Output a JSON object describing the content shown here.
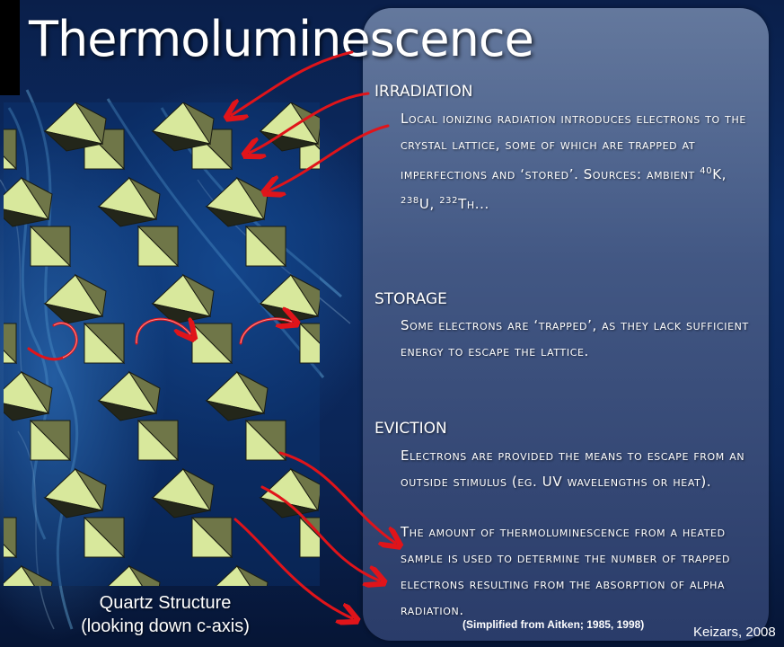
{
  "title": "Thermoluminescence",
  "figure": {
    "caption_line1": "Quartz Structure",
    "caption_line2": "(looking down c-axis)"
  },
  "sections": [
    {
      "heading": "IRRADIATION",
      "body_part1": "Local ionizing radiation introduces electrons to the crystal lattice, some of which are trapped at imperfections and ‘stored’.  Sources:  ambient ",
      "isotope1_mass": "40",
      "isotope1_symbol": "K, ",
      "isotope2_mass": "238",
      "isotope2_symbol": "U, ",
      "isotope3_mass": "232",
      "isotope3_symbol": "Th..."
    },
    {
      "heading": "STORAGE",
      "body": "Some electrons are ‘trapped’, as they lack sufficient energy to escape the lattice."
    },
    {
      "heading": "EVICTION",
      "body1": "Electrons are provided the means to escape from an outside stimulus (eg. UV wavelengths or heat).",
      "body2": "The amount of thermoluminescence  from a heated sample is used to determine the number of trapped electrons resulting from the absorption of alpha radiation."
    }
  ],
  "source_note": "(Simplified from Aitken; 1985, 1998)",
  "credit": "Keizars, 2008",
  "colors": {
    "arrow_red": "#e0141a",
    "tetra_light": "#d8e89c",
    "tetra_mid": "#6f7648",
    "tetra_dark": "#23261a"
  }
}
